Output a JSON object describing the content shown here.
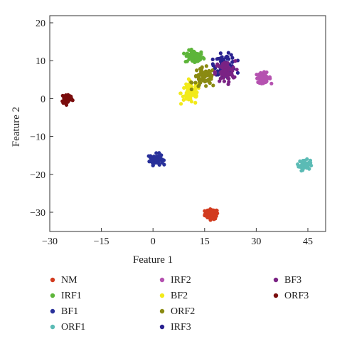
{
  "chart_data": {
    "type": "scatter",
    "xlabel": "Feature 1",
    "ylabel": "Feature 2",
    "xlim": [
      -30,
      50
    ],
    "ylim": [
      -35,
      22
    ],
    "xticks": [
      -30,
      -15,
      0,
      15,
      30,
      45
    ],
    "yticks": [
      20,
      10,
      0,
      -10,
      -20,
      -30
    ],
    "grid": false,
    "legend_position": "bottom",
    "legend_columns": 3,
    "series": [
      {
        "name": "NM",
        "color": "#d23b1f",
        "center": [
          17,
          -30.5
        ],
        "spread": [
          1.6,
          1.1
        ],
        "count": 70
      },
      {
        "name": "IRF1",
        "color": "#5db53a",
        "center": [
          12,
          11
        ],
        "spread": [
          2.2,
          1.4
        ],
        "count": 70
      },
      {
        "name": "BF1",
        "color": "#28309a",
        "center": [
          1,
          -16
        ],
        "spread": [
          1.6,
          1.2
        ],
        "count": 70
      },
      {
        "name": "ORF1",
        "color": "#5bbbb5",
        "center": [
          44,
          -17.5
        ],
        "spread": [
          1.4,
          1.1
        ],
        "count": 55
      },
      {
        "name": "IRF2",
        "color": "#b552b0",
        "center": [
          32,
          5.5
        ],
        "spread": [
          1.8,
          1.1
        ],
        "count": 60
      },
      {
        "name": "BF2",
        "color": "#f2ea1a",
        "center": [
          11,
          1.5
        ],
        "spread": [
          2.4,
          2.6
        ],
        "count": 70
      },
      {
        "name": "ORF2",
        "color": "#8a8a12",
        "center": [
          15,
          5.5
        ],
        "spread": [
          2.8,
          2.2
        ],
        "count": 70
      },
      {
        "name": "IRF3",
        "color": "#2a2290",
        "center": [
          21,
          9
        ],
        "spread": [
          2.6,
          2.2
        ],
        "count": 75
      },
      {
        "name": "BF3",
        "color": "#7a2384",
        "center": [
          21,
          7
        ],
        "spread": [
          2.4,
          2.4
        ],
        "count": 70
      },
      {
        "name": "ORF3",
        "color": "#7a0d0d",
        "center": [
          -25,
          0
        ],
        "spread": [
          1.3,
          1.2
        ],
        "count": 60
      }
    ]
  }
}
